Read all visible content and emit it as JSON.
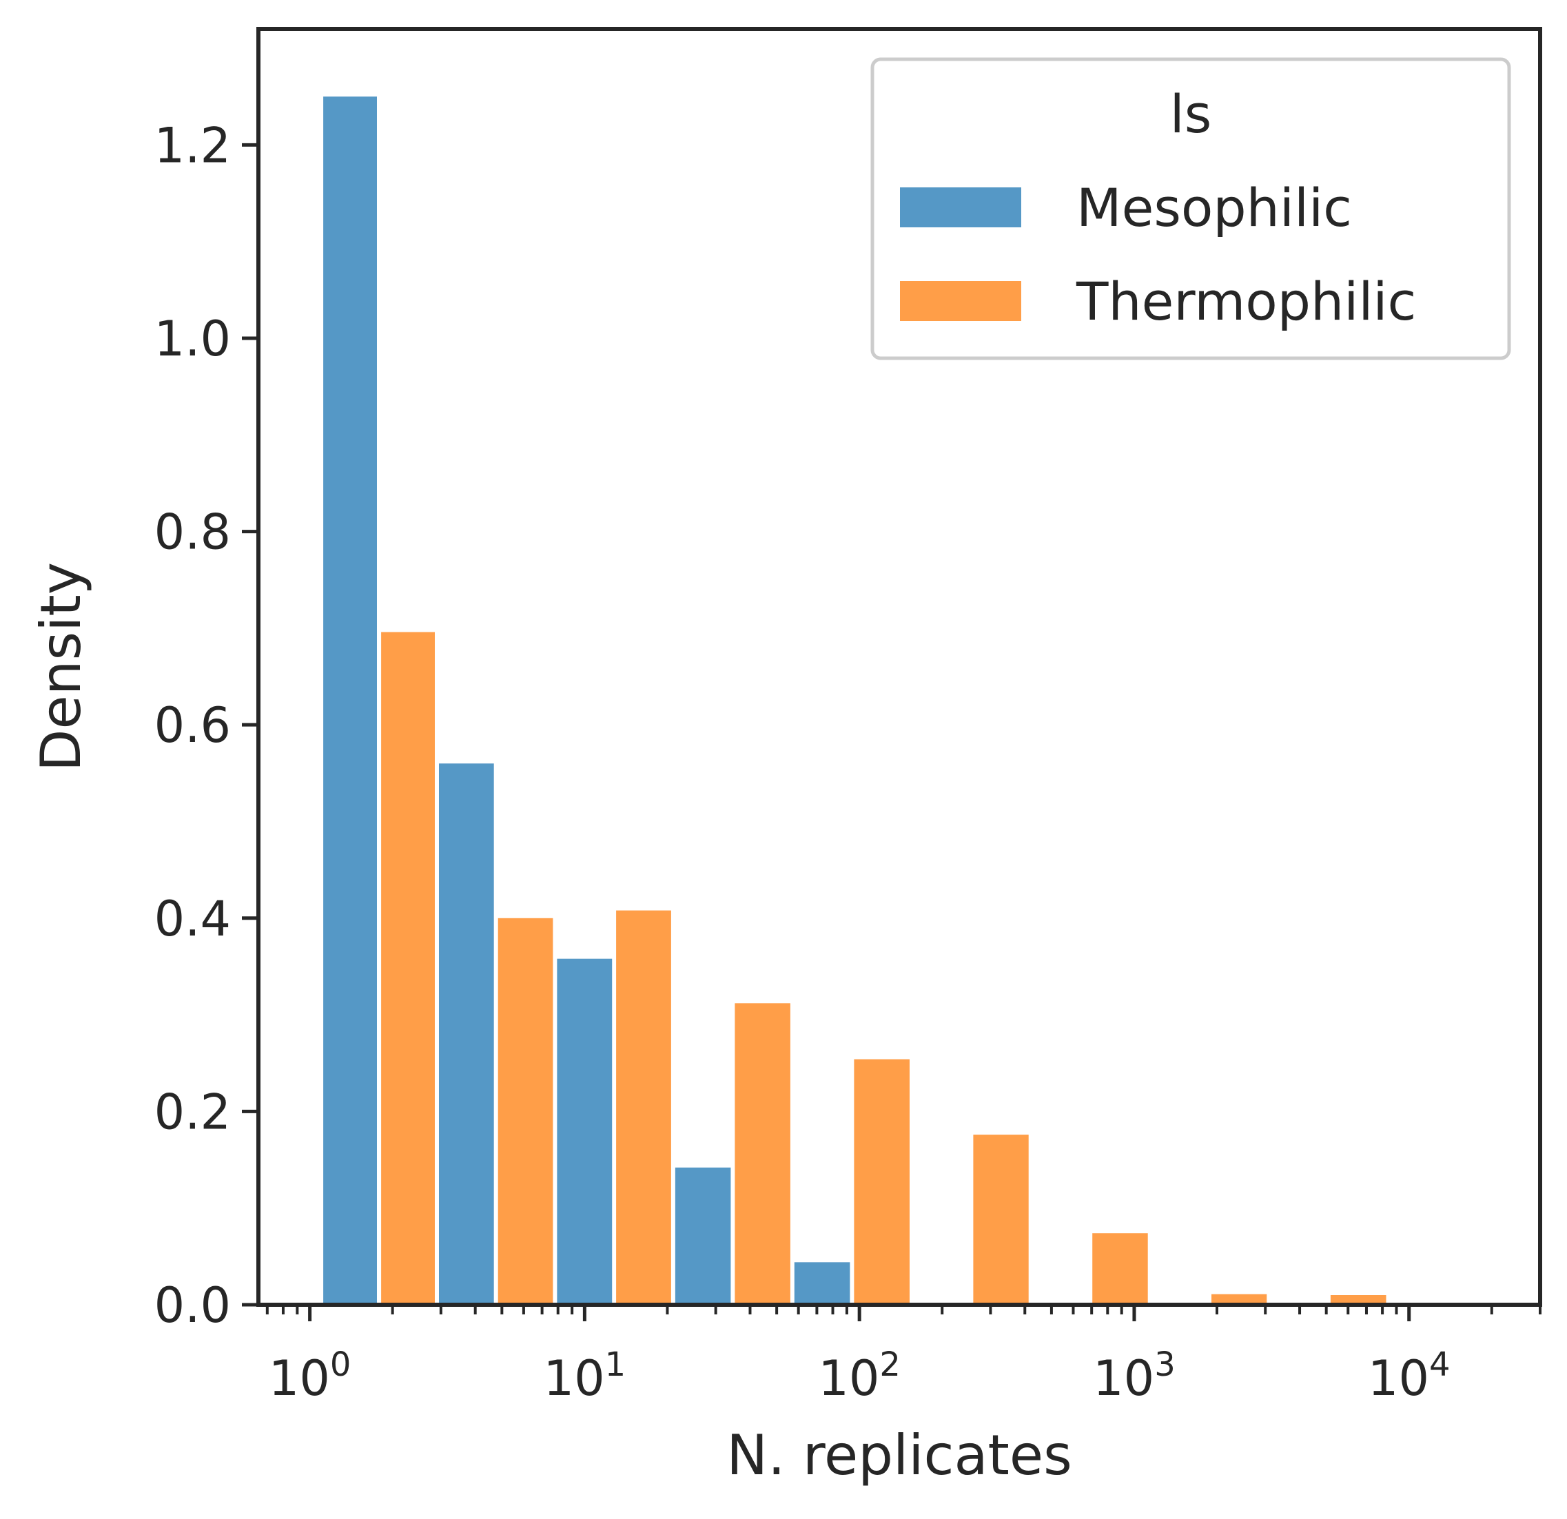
{
  "chart_data": {
    "type": "bar",
    "xlabel": "N. replicates",
    "ylabel": "Density",
    "xscale": "log",
    "xlim": [
      0.65,
      30000
    ],
    "ylim": [
      0,
      1.32
    ],
    "grid": false,
    "legend_placement": "top-right",
    "legend_title": "ls",
    "y_ticks": [
      "0.0",
      "0.2",
      "0.4",
      "0.6",
      "0.8",
      "1.0",
      "1.2"
    ],
    "x_ticks": [
      {
        "base": "10",
        "exp": "0"
      },
      {
        "base": "10",
        "exp": "1"
      },
      {
        "base": "10",
        "exp": "2"
      },
      {
        "base": "10",
        "exp": "3"
      },
      {
        "base": "10",
        "exp": "4"
      }
    ],
    "bin_edges": [
      1.1,
      2.9,
      7.8,
      21,
      57,
      155,
      420,
      1140,
      3090,
      8400,
      22800
    ],
    "series": [
      {
        "name": "Mesophilic",
        "color": "#4c92c3",
        "values": [
          1.25,
          0.56,
          0.358,
          0.142,
          0.044,
          0,
          0,
          0,
          0,
          0
        ]
      },
      {
        "name": "Thermophilic",
        "color": "#ff993e",
        "values": [
          0.696,
          0.4,
          0.408,
          0.312,
          0.254,
          0.176,
          0.074,
          0.011,
          0.01,
          0
        ]
      }
    ]
  }
}
